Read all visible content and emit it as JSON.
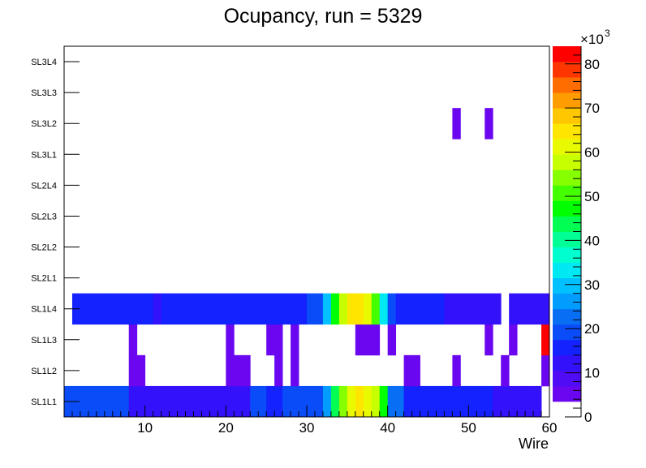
{
  "chart_data": {
    "type": "heatmap",
    "title": "Ocupancy, run = 5329",
    "xlabel": "Wire",
    "ylabel": "",
    "xlim": [
      0,
      60
    ],
    "x_ticks": [
      10,
      20,
      30,
      40,
      50,
      60
    ],
    "y_categories": [
      "SL1L1",
      "SL1L2",
      "SL1L3",
      "SL1L4",
      "SL2L1",
      "SL2L2",
      "SL2L3",
      "SL2L4",
      "SL3L1",
      "SL3L2",
      "SL3L3",
      "SL3L4"
    ],
    "colorbar": {
      "min": 0,
      "max": 84,
      "multiplier_label": "×10",
      "multiplier_exponent": "3",
      "ticks": [
        0,
        10,
        20,
        30,
        40,
        50,
        60,
        70,
        80
      ],
      "colors": [
        "#ffffff",
        "#6a07f0",
        "#4f0cf5",
        "#3311fa",
        "#1322ff",
        "#0a4df8",
        "#086ff4",
        "#009dff",
        "#00c0ff",
        "#00e8f2",
        "#00ffce",
        "#00ff94",
        "#00ff52",
        "#00ff00",
        "#44ff00",
        "#86ff00",
        "#c7ff00",
        "#e9fa00",
        "#fee600",
        "#ffc700",
        "#ff9c00",
        "#ff6c00",
        "#ff3500",
        "#ff0000"
      ]
    },
    "rows": {
      "SL1L1": [
        18,
        18,
        18,
        18,
        18,
        18,
        18,
        18,
        12,
        12,
        12,
        12,
        12,
        12,
        12,
        12,
        12,
        12,
        12,
        12,
        12,
        12,
        12,
        18,
        18,
        14,
        14,
        18,
        18,
        18,
        18,
        18,
        26,
        44,
        54,
        62,
        64,
        62,
        56,
        46,
        22,
        22,
        14,
        14,
        14,
        14,
        14,
        14,
        14,
        14,
        14,
        14,
        14,
        11,
        11,
        11,
        11,
        11,
        11,
        0
      ],
      "SL1L2": [
        0,
        0,
        0,
        0,
        0,
        0,
        0,
        0,
        4,
        4,
        0,
        0,
        0,
        0,
        0,
        0,
        0,
        0,
        0,
        0,
        4,
        4,
        4,
        0,
        0,
        0,
        4,
        0,
        4,
        0,
        0,
        0,
        0,
        0,
        0,
        0,
        0,
        0,
        0,
        0,
        0,
        0,
        4,
        4,
        0,
        0,
        0,
        0,
        4,
        0,
        0,
        0,
        0,
        0,
        4,
        0,
        0,
        0,
        0,
        4
      ],
      "SL1L3": [
        0,
        0,
        0,
        0,
        0,
        0,
        0,
        0,
        4,
        0,
        0,
        0,
        0,
        0,
        0,
        0,
        0,
        0,
        0,
        0,
        4,
        0,
        0,
        0,
        0,
        4,
        4,
        0,
        4,
        0,
        0,
        0,
        0,
        0,
        0,
        0,
        4,
        4,
        4,
        0,
        4,
        0,
        0,
        0,
        0,
        0,
        0,
        0,
        0,
        0,
        0,
        0,
        4,
        0,
        0,
        4,
        0,
        0,
        0,
        82
      ],
      "SL1L4": [
        0,
        14,
        14,
        14,
        14,
        14,
        14,
        14,
        14,
        14,
        14,
        11,
        14,
        14,
        14,
        14,
        14,
        14,
        14,
        14,
        14,
        14,
        14,
        14,
        14,
        14,
        14,
        14,
        14,
        14,
        18,
        18,
        28,
        46,
        56,
        64,
        66,
        62,
        50,
        34,
        20,
        16,
        14,
        14,
        14,
        14,
        14,
        11,
        11,
        11,
        11,
        11,
        11,
        11,
        0,
        11,
        11,
        11,
        11,
        11
      ],
      "SL2L1": [
        0,
        0,
        0,
        0,
        0,
        0,
        0,
        0,
        0,
        0,
        0,
        0,
        0,
        0,
        0,
        0,
        0,
        0,
        0,
        0,
        0,
        0,
        0,
        0,
        0,
        0,
        0,
        0,
        0,
        0,
        0,
        0,
        0,
        0,
        0,
        0,
        0,
        0,
        0,
        0,
        0,
        0,
        0,
        0,
        0,
        0,
        0,
        0,
        0,
        0,
        0,
        0,
        0,
        0,
        0,
        0,
        0,
        0,
        0,
        0
      ],
      "SL2L2": [
        0,
        0,
        0,
        0,
        0,
        0,
        0,
        0,
        0,
        0,
        0,
        0,
        0,
        0,
        0,
        0,
        0,
        0,
        0,
        0,
        0,
        0,
        0,
        0,
        0,
        0,
        0,
        0,
        0,
        0,
        0,
        0,
        0,
        0,
        0,
        0,
        0,
        0,
        0,
        0,
        0,
        0,
        0,
        0,
        0,
        0,
        0,
        0,
        0,
        0,
        0,
        0,
        0,
        0,
        0,
        0,
        0,
        0,
        0,
        0
      ],
      "SL2L3": [
        0,
        0,
        0,
        0,
        0,
        0,
        0,
        0,
        0,
        0,
        0,
        0,
        0,
        0,
        0,
        0,
        0,
        0,
        0,
        0,
        0,
        0,
        0,
        0,
        0,
        0,
        0,
        0,
        0,
        0,
        0,
        0,
        0,
        0,
        0,
        0,
        0,
        0,
        0,
        0,
        0,
        0,
        0,
        0,
        0,
        0,
        0,
        0,
        0,
        0,
        0,
        0,
        0,
        0,
        0,
        0,
        0,
        0,
        0,
        0
      ],
      "SL2L4": [
        0,
        0,
        0,
        0,
        0,
        0,
        0,
        0,
        0,
        0,
        0,
        0,
        0,
        0,
        0,
        0,
        0,
        0,
        0,
        0,
        0,
        0,
        0,
        0,
        0,
        0,
        0,
        0,
        0,
        0,
        0,
        0,
        0,
        0,
        0,
        0,
        0,
        0,
        0,
        0,
        0,
        0,
        0,
        0,
        0,
        0,
        0,
        0,
        0,
        0,
        0,
        0,
        0,
        0,
        0,
        0,
        0,
        0,
        0,
        0
      ],
      "SL3L1": [
        0,
        0,
        0,
        0,
        0,
        0,
        0,
        0,
        0,
        0,
        0,
        0,
        0,
        0,
        0,
        0,
        0,
        0,
        0,
        0,
        0,
        0,
        0,
        0,
        0,
        0,
        0,
        0,
        0,
        0,
        0,
        0,
        0,
        0,
        0,
        0,
        0,
        0,
        0,
        0,
        0,
        0,
        0,
        0,
        0,
        0,
        0,
        0,
        0,
        0,
        0,
        0,
        0,
        0,
        0,
        0,
        0,
        0,
        0,
        0
      ],
      "SL3L2": [
        0,
        0,
        0,
        0,
        0,
        0,
        0,
        0,
        0,
        0,
        0,
        0,
        0,
        0,
        0,
        0,
        0,
        0,
        0,
        0,
        0,
        0,
        0,
        0,
        0,
        0,
        0,
        0,
        0,
        0,
        0,
        0,
        0,
        0,
        0,
        0,
        0,
        0,
        0,
        0,
        0,
        0,
        0,
        0,
        0,
        0,
        0,
        0,
        4,
        0,
        0,
        0,
        4,
        0,
        0,
        0,
        0,
        0,
        0,
        0
      ],
      "SL3L3": [
        0,
        0,
        0,
        0,
        0,
        0,
        0,
        0,
        0,
        0,
        0,
        0,
        0,
        0,
        0,
        0,
        0,
        0,
        0,
        0,
        0,
        0,
        0,
        0,
        0,
        0,
        0,
        0,
        0,
        0,
        0,
        0,
        0,
        0,
        0,
        0,
        0,
        0,
        0,
        0,
        0,
        0,
        0,
        0,
        0,
        0,
        0,
        0,
        0,
        0,
        0,
        0,
        0,
        0,
        0,
        0,
        0,
        0,
        0,
        0
      ],
      "SL3L4": [
        0,
        0,
        0,
        0,
        0,
        0,
        0,
        0,
        0,
        0,
        0,
        0,
        0,
        0,
        0,
        0,
        0,
        0,
        0,
        0,
        0,
        0,
        0,
        0,
        0,
        0,
        0,
        0,
        0,
        0,
        0,
        0,
        0,
        0,
        0,
        0,
        0,
        0,
        0,
        0,
        0,
        0,
        0,
        0,
        0,
        0,
        0,
        0,
        0,
        0,
        0,
        0,
        0,
        0,
        0,
        0,
        0,
        0,
        0,
        0
      ]
    }
  }
}
